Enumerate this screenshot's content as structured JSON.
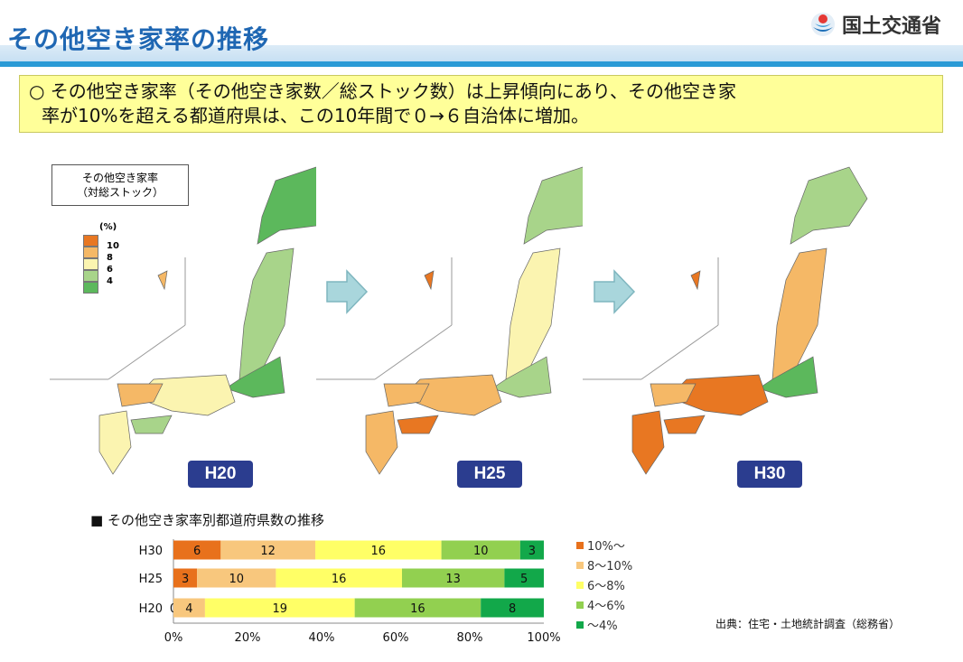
{
  "header": {
    "title": "その他空き家率の推移",
    "ministry": "国土交通省"
  },
  "summary": {
    "line1": "○ その他空き家率（その他空き家数／総ストック数）は上昇傾向にあり、その他空き家",
    "line2": "率が10%を超える都道府県は、この10年間で０→６自治体に増加。"
  },
  "map_legend": {
    "title_line1": "その他空き家率",
    "title_line2": "（対総ストック）",
    "unit": "(%)",
    "ticks": [
      "10",
      "8",
      "6",
      "4"
    ],
    "colors": [
      "#e87722",
      "#f5b866",
      "#fbf4b0",
      "#a8d48a",
      "#5cb85c"
    ]
  },
  "maps": [
    {
      "label": "H20"
    },
    {
      "label": "H25"
    },
    {
      "label": "H30"
    }
  ],
  "chart_title": "■ その他空き家率別都道府県数の推移",
  "source": "出典：住宅・土地統計調査（総務省）",
  "chart_data": {
    "type": "bar",
    "orientation": "horizontal-stacked-100",
    "categories": [
      "H30",
      "H25",
      "H20"
    ],
    "series": [
      {
        "name": "10%〜",
        "color": "#e8711c",
        "values": [
          6,
          3,
          0
        ]
      },
      {
        "name": "8〜10%",
        "color": "#f8c77d",
        "values": [
          12,
          10,
          4
        ]
      },
      {
        "name": "6〜8%",
        "color": "#ffff66",
        "values": [
          16,
          16,
          19
        ]
      },
      {
        "name": "4〜6%",
        "color": "#92d050",
        "values": [
          10,
          13,
          16
        ]
      },
      {
        "name": "〜4%",
        "color": "#12a84a",
        "values": [
          3,
          5,
          8
        ]
      }
    ],
    "xticks": [
      "0%",
      "20%",
      "40%",
      "60%",
      "80%",
      "100%"
    ],
    "xlim": [
      0,
      100
    ],
    "total": 47,
    "legend_position": "right"
  }
}
